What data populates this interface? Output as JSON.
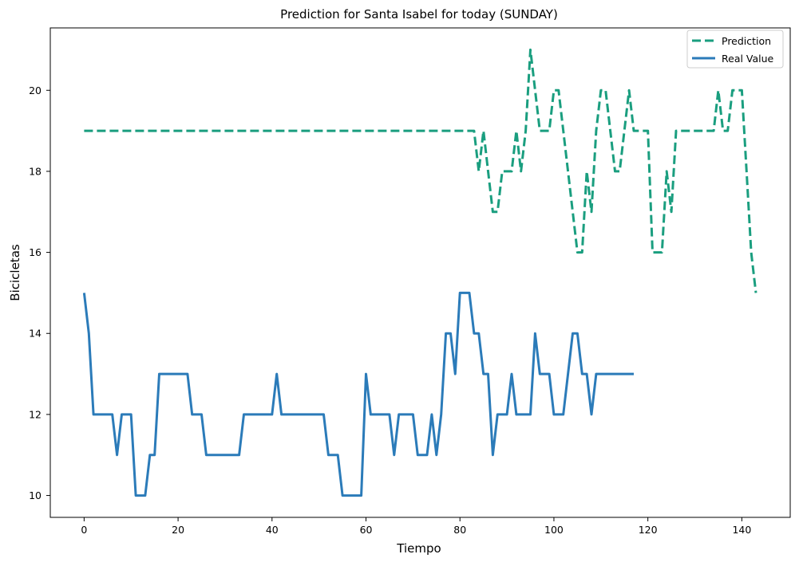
{
  "chart_data": {
    "type": "line",
    "title": "Prediction for Santa Isabel for today (SUNDAY)",
    "xlabel": "Tiempo",
    "ylabel": "Bicicletas",
    "xlim": [
      -7.2,
      150.3
    ],
    "ylim": [
      9.46,
      21.54
    ],
    "xticks": [
      0,
      20,
      40,
      60,
      80,
      100,
      120,
      140
    ],
    "yticks": [
      10,
      12,
      14,
      16,
      18,
      20
    ],
    "grid": false,
    "legend_position": "top-right",
    "series": [
      {
        "name": "Prediction",
        "color": "#1a9e7f",
        "style": "dashed",
        "x": [
          0,
          82,
          83,
          84,
          85,
          86,
          87,
          88,
          89,
          90,
          91,
          92,
          93,
          94,
          95,
          96,
          97,
          98,
          99,
          100,
          101,
          102,
          103,
          104,
          105,
          106,
          107,
          108,
          109,
          110,
          111,
          112,
          113,
          114,
          115,
          116,
          117,
          118,
          119,
          120,
          121,
          122,
          123,
          124,
          125,
          126,
          127,
          134,
          135,
          136,
          137,
          138,
          139,
          140,
          141,
          142,
          143
        ],
        "values": [
          19,
          19,
          19,
          18,
          19,
          18,
          17,
          17,
          18,
          18,
          18,
          19,
          18,
          19,
          21,
          20,
          19,
          19,
          19,
          20,
          20,
          19,
          18,
          17,
          16,
          16,
          18,
          17,
          19,
          20,
          20,
          19,
          18,
          18,
          19,
          20,
          19,
          19,
          19,
          19,
          16,
          16,
          16,
          18,
          17,
          19,
          19,
          19,
          20,
          19,
          19,
          20,
          20,
          20,
          18,
          16,
          15
        ]
      },
      {
        "name": "Real Value",
        "color": "#2b7bb9",
        "style": "solid",
        "x": [
          0,
          1,
          2,
          6,
          7,
          8,
          10,
          11,
          13,
          14,
          15,
          16,
          22,
          23,
          25,
          26,
          33,
          34,
          40,
          41,
          42,
          51,
          52,
          54,
          55,
          59,
          60,
          61,
          65,
          66,
          67,
          70,
          71,
          73,
          74,
          75,
          76,
          77,
          78,
          79,
          80,
          82,
          83,
          84,
          85,
          86,
          87,
          88,
          90,
          91,
          92,
          95,
          96,
          97,
          99,
          100,
          102,
          103,
          104,
          105,
          106,
          107,
          108,
          109,
          117
        ],
        "values": [
          15,
          14,
          12,
          12,
          11,
          12,
          12,
          10,
          10,
          11,
          11,
          13,
          13,
          12,
          12,
          11,
          11,
          12,
          12,
          13,
          12,
          12,
          11,
          11,
          10,
          10,
          13,
          12,
          12,
          11,
          12,
          12,
          11,
          11,
          12,
          11,
          12,
          14,
          14,
          13,
          15,
          15,
          14,
          14,
          13,
          13,
          11,
          12,
          12,
          13,
          12,
          12,
          14,
          13,
          13,
          12,
          12,
          13,
          14,
          14,
          13,
          13,
          12,
          13,
          13
        ]
      }
    ]
  }
}
